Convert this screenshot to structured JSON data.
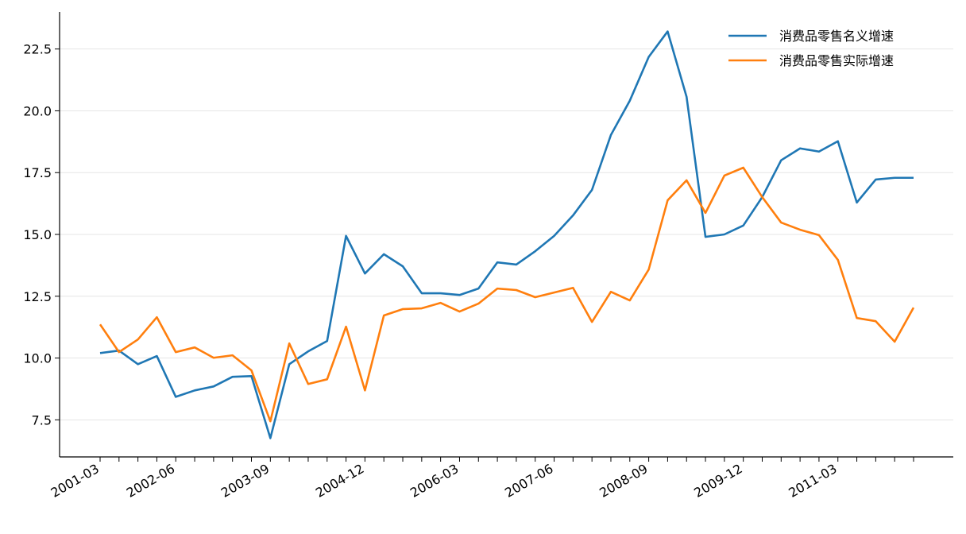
{
  "chart_data": {
    "type": "line",
    "categories": [
      "2001-03",
      null,
      null,
      null,
      "2002-06",
      null,
      null,
      null,
      null,
      "2003-09",
      null,
      null,
      null,
      null,
      "2004-12",
      null,
      null,
      null,
      null,
      "2006-03",
      null,
      null,
      null,
      null,
      "2007-06",
      null,
      null,
      null,
      null,
      "2008-09",
      null,
      null,
      null,
      null,
      "2009-12",
      null,
      null,
      null,
      null,
      "2011-03",
      null,
      null,
      null,
      null
    ],
    "series": [
      {
        "name": "消费品零售名义增速",
        "color": "#1f77b4",
        "values": [
          10.2,
          10.3,
          9.75,
          10.08,
          8.43,
          8.69,
          8.85,
          9.24,
          9.27,
          6.76,
          9.75,
          10.27,
          10.69,
          14.94,
          13.42,
          14.2,
          13.71,
          12.62,
          12.62,
          12.55,
          12.81,
          13.87,
          13.78,
          14.32,
          14.94,
          15.77,
          16.8,
          19.02,
          20.41,
          22.18,
          23.21,
          20.57,
          14.9,
          15.0,
          15.36,
          16.51,
          18.0,
          18.48,
          18.35,
          18.77,
          16.29,
          17.22,
          17.29,
          17.29
        ]
      },
      {
        "name": "消费品零售实际增速",
        "color": "#ff7f0e",
        "values": [
          11.36,
          10.24,
          10.75,
          11.65,
          10.24,
          10.43,
          10.01,
          10.11,
          9.5,
          7.44,
          10.59,
          8.95,
          9.14,
          11.27,
          8.69,
          11.72,
          11.98,
          12.01,
          12.23,
          11.88,
          12.2,
          12.81,
          12.75,
          12.46,
          12.65,
          12.84,
          11.46,
          12.68,
          12.33,
          13.58,
          16.38,
          17.19,
          15.87,
          17.38,
          17.7,
          16.51,
          15.48,
          15.19,
          14.97,
          13.97,
          11.62,
          11.49,
          10.66,
          12.04
        ]
      }
    ],
    "ylim": [
      6.0,
      24.0
    ],
    "yticks": [
      7.5,
      {
        "value": 10,
        "label": "10.0"
      },
      12.5,
      {
        "value": 15,
        "label": "15.0"
      },
      17.5,
      {
        "value": 20,
        "label": "20.0"
      },
      22.5
    ],
    "grid": true,
    "legend": "upper right"
  }
}
